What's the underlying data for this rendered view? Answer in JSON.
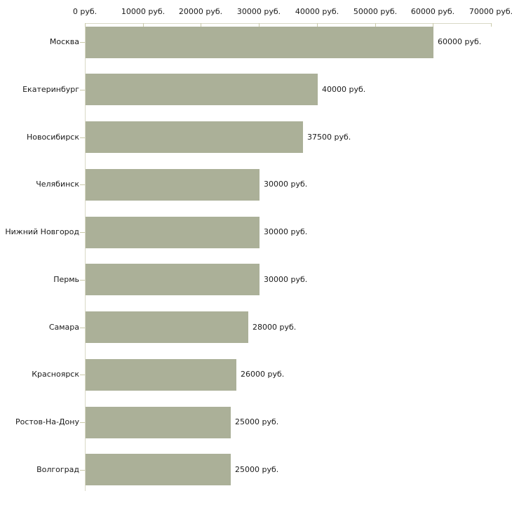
{
  "chart_data": {
    "type": "bar",
    "orientation": "horizontal",
    "title": "",
    "categories": [
      "Москва",
      "Екатеринбург",
      "Новосибирск",
      "Челябинск",
      "Нижний Новгород",
      "Пермь",
      "Самара",
      "Красноярск",
      "Ростов-На-Дону",
      "Волгоград"
    ],
    "values": [
      60000,
      40000,
      37500,
      30000,
      30000,
      30000,
      28000,
      26000,
      25000,
      25000
    ],
    "value_labels": [
      "60000 руб.",
      "40000 руб.",
      "37500 руб.",
      "30000 руб.",
      "30000 руб.",
      "30000 руб.",
      "28000 руб.",
      "26000 руб.",
      "25000 руб.",
      "25000 руб."
    ],
    "x_axis": {
      "position": "top",
      "ticks": [
        0,
        10000,
        20000,
        30000,
        40000,
        50000,
        60000,
        70000
      ],
      "tick_labels": [
        "0 руб.",
        "10000 руб.",
        "20000 руб.",
        "30000 руб.",
        "40000 руб.",
        "50000 руб.",
        "60000 руб.",
        "70000 руб."
      ]
    },
    "xlim": [
      0,
      70000
    ],
    "grid": false,
    "legend": false,
    "colors": {
      "bar": "#abb098",
      "axis_line": "#d9d9c6",
      "tick": "#c9c9a8",
      "text": "#1a1a1a",
      "background": "#ffffff"
    }
  }
}
